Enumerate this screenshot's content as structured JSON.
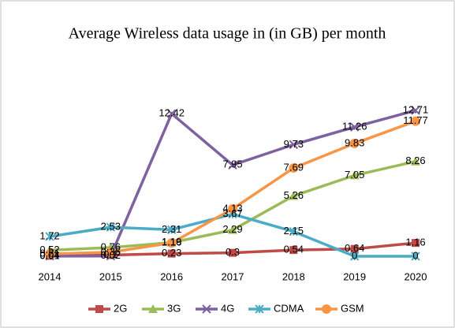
{
  "chart_data": {
    "type": "line",
    "title": "Average Wireless data usage in (in GB) per month",
    "categories": [
      "2014",
      "2015",
      "2016",
      "2017",
      "2018",
      "2019",
      "2020"
    ],
    "series": [
      {
        "name": "2G",
        "color": "#be4b48",
        "marker": "square",
        "values": [
          0.04,
          0.1,
          0.23,
          0.3,
          0.54,
          0.64,
          1.16
        ]
      },
      {
        "name": "3G",
        "color": "#9bbb59",
        "marker": "triangle",
        "values": [
          0.52,
          0.76,
          1.19,
          2.29,
          5.26,
          7.05,
          8.26
        ]
      },
      {
        "name": "4G",
        "color": "#7f60a0",
        "marker": "x",
        "values": [
          0.01,
          0.02,
          12.42,
          7.95,
          9.73,
          11.26,
          12.71
        ]
      },
      {
        "name": "CDMA",
        "color": "#4bacc6",
        "marker": "star",
        "values": [
          1.72,
          2.53,
          2.31,
          3.67,
          2.15,
          0,
          0
        ]
      },
      {
        "name": "GSM",
        "color": "#f79646",
        "marker": "circle",
        "values": [
          0.21,
          0.35,
          1.16,
          4.13,
          7.69,
          9.83,
          11.77
        ]
      }
    ],
    "legend": "bottom"
  }
}
